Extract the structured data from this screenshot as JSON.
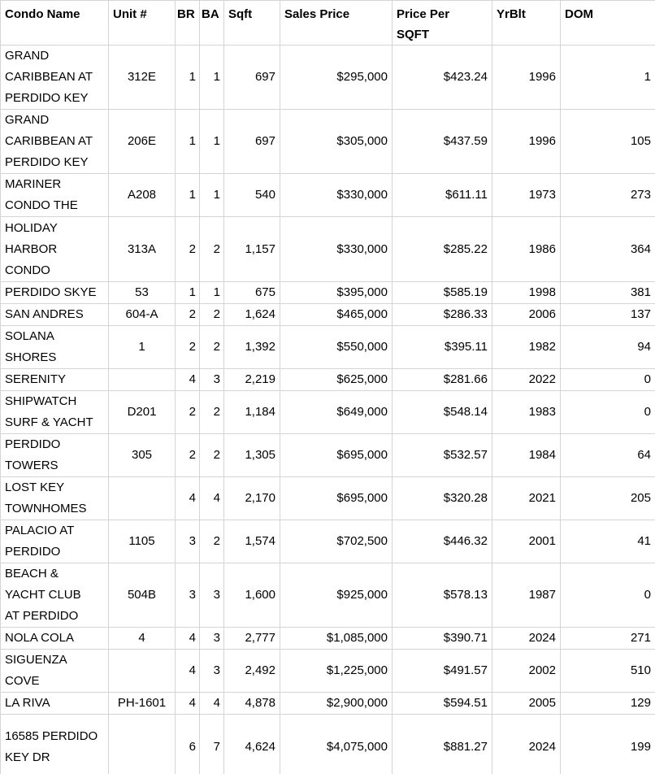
{
  "colors": {
    "gridline": "#d4d4d4",
    "text": "#000000",
    "background": "#ffffff"
  },
  "table": {
    "columns": [
      {
        "key": "name",
        "label": "Condo Name"
      },
      {
        "key": "unit",
        "label": "Unit #"
      },
      {
        "key": "br",
        "label": "BR"
      },
      {
        "key": "ba",
        "label": "BA"
      },
      {
        "key": "sqft",
        "label": "Sqft"
      },
      {
        "key": "sales_price",
        "label": "Sales Price"
      },
      {
        "key": "price_per_sqft",
        "label": "Price Per\nSQFT"
      },
      {
        "key": "yrblt",
        "label": "YrBlt"
      },
      {
        "key": "dom",
        "label": "DOM"
      }
    ],
    "rows": [
      {
        "name": "GRAND\nCARIBBEAN AT\nPERDIDO KEY",
        "unit": "312E",
        "br": "1",
        "ba": "1",
        "sqft": "697",
        "sales_price": "$295,000",
        "price_per_sqft": "$423.24",
        "yrblt": "1996",
        "dom": "1"
      },
      {
        "name": "GRAND\nCARIBBEAN AT\nPERDIDO KEY",
        "unit": "206E",
        "br": "1",
        "ba": "1",
        "sqft": "697",
        "sales_price": "$305,000",
        "price_per_sqft": "$437.59",
        "yrblt": "1996",
        "dom": "105"
      },
      {
        "name": "MARINER\nCONDO THE",
        "unit": "A208",
        "br": "1",
        "ba": "1",
        "sqft": "540",
        "sales_price": "$330,000",
        "price_per_sqft": "$611.11",
        "yrblt": "1973",
        "dom": "273"
      },
      {
        "name": "HOLIDAY\nHARBOR\nCONDO",
        "unit": "313A",
        "br": "2",
        "ba": "2",
        "sqft": "1,157",
        "sales_price": "$330,000",
        "price_per_sqft": "$285.22",
        "yrblt": "1986",
        "dom": "364"
      },
      {
        "name": "PERDIDO SKYE",
        "unit": "53",
        "br": "1",
        "ba": "1",
        "sqft": "675",
        "sales_price": "$395,000",
        "price_per_sqft": "$585.19",
        "yrblt": "1998",
        "dom": "381"
      },
      {
        "name": "SAN ANDRES",
        "unit": "604-A",
        "br": "2",
        "ba": "2",
        "sqft": "1,624",
        "sales_price": "$465,000",
        "price_per_sqft": "$286.33",
        "yrblt": "2006",
        "dom": "137"
      },
      {
        "name": "SOLANA\nSHORES",
        "unit": "1",
        "br": "2",
        "ba": "2",
        "sqft": "1,392",
        "sales_price": "$550,000",
        "price_per_sqft": "$395.11",
        "yrblt": "1982",
        "dom": "94"
      },
      {
        "name": "SERENITY",
        "unit": "",
        "br": "4",
        "ba": "3",
        "sqft": "2,219",
        "sales_price": "$625,000",
        "price_per_sqft": "$281.66",
        "yrblt": "2022",
        "dom": "0"
      },
      {
        "name": "SHIPWATCH\nSURF & YACHT",
        "unit": "D201",
        "br": "2",
        "ba": "2",
        "sqft": "1,184",
        "sales_price": "$649,000",
        "price_per_sqft": "$548.14",
        "yrblt": "1983",
        "dom": "0"
      },
      {
        "name": "PERDIDO\nTOWERS",
        "unit": "305",
        "br": "2",
        "ba": "2",
        "sqft": "1,305",
        "sales_price": "$695,000",
        "price_per_sqft": "$532.57",
        "yrblt": "1984",
        "dom": "64"
      },
      {
        "name": "LOST KEY\nTOWNHOMES",
        "unit": "",
        "br": "4",
        "ba": "4",
        "sqft": "2,170",
        "sales_price": "$695,000",
        "price_per_sqft": "$320.28",
        "yrblt": "2021",
        "dom": "205"
      },
      {
        "name": "PALACIO AT\nPERDIDO",
        "unit": "1105",
        "br": "3",
        "ba": "2",
        "sqft": "1,574",
        "sales_price": "$702,500",
        "price_per_sqft": "$446.32",
        "yrblt": "2001",
        "dom": "41"
      },
      {
        "name": "BEACH &\nYACHT CLUB\nAT PERDIDO",
        "unit": "504B",
        "br": "3",
        "ba": "3",
        "sqft": "1,600",
        "sales_price": "$925,000",
        "price_per_sqft": "$578.13",
        "yrblt": "1987",
        "dom": "0"
      },
      {
        "name": "NOLA COLA",
        "unit": "4",
        "br": "4",
        "ba": "3",
        "sqft": "2,777",
        "sales_price": "$1,085,000",
        "price_per_sqft": "$390.71",
        "yrblt": "2024",
        "dom": "271"
      },
      {
        "name": "SIGUENZA\nCOVE",
        "unit": "",
        "br": "4",
        "ba": "3",
        "sqft": "2,492",
        "sales_price": "$1,225,000",
        "price_per_sqft": "$491.57",
        "yrblt": "2002",
        "dom": "510"
      },
      {
        "name": "LA RIVA",
        "unit": "PH-1601",
        "br": "4",
        "ba": "4",
        "sqft": "4,878",
        "sales_price": "$2,900,000",
        "price_per_sqft": "$594.51",
        "yrblt": "2005",
        "dom": "129"
      },
      {
        "name": "16585 PERDIDO\nKEY DR",
        "unit": "",
        "br": "6",
        "ba": "7",
        "sqft": "4,624",
        "sales_price": "$4,075,000",
        "price_per_sqft": "$881.27",
        "yrblt": "2024",
        "dom": "199"
      }
    ]
  }
}
